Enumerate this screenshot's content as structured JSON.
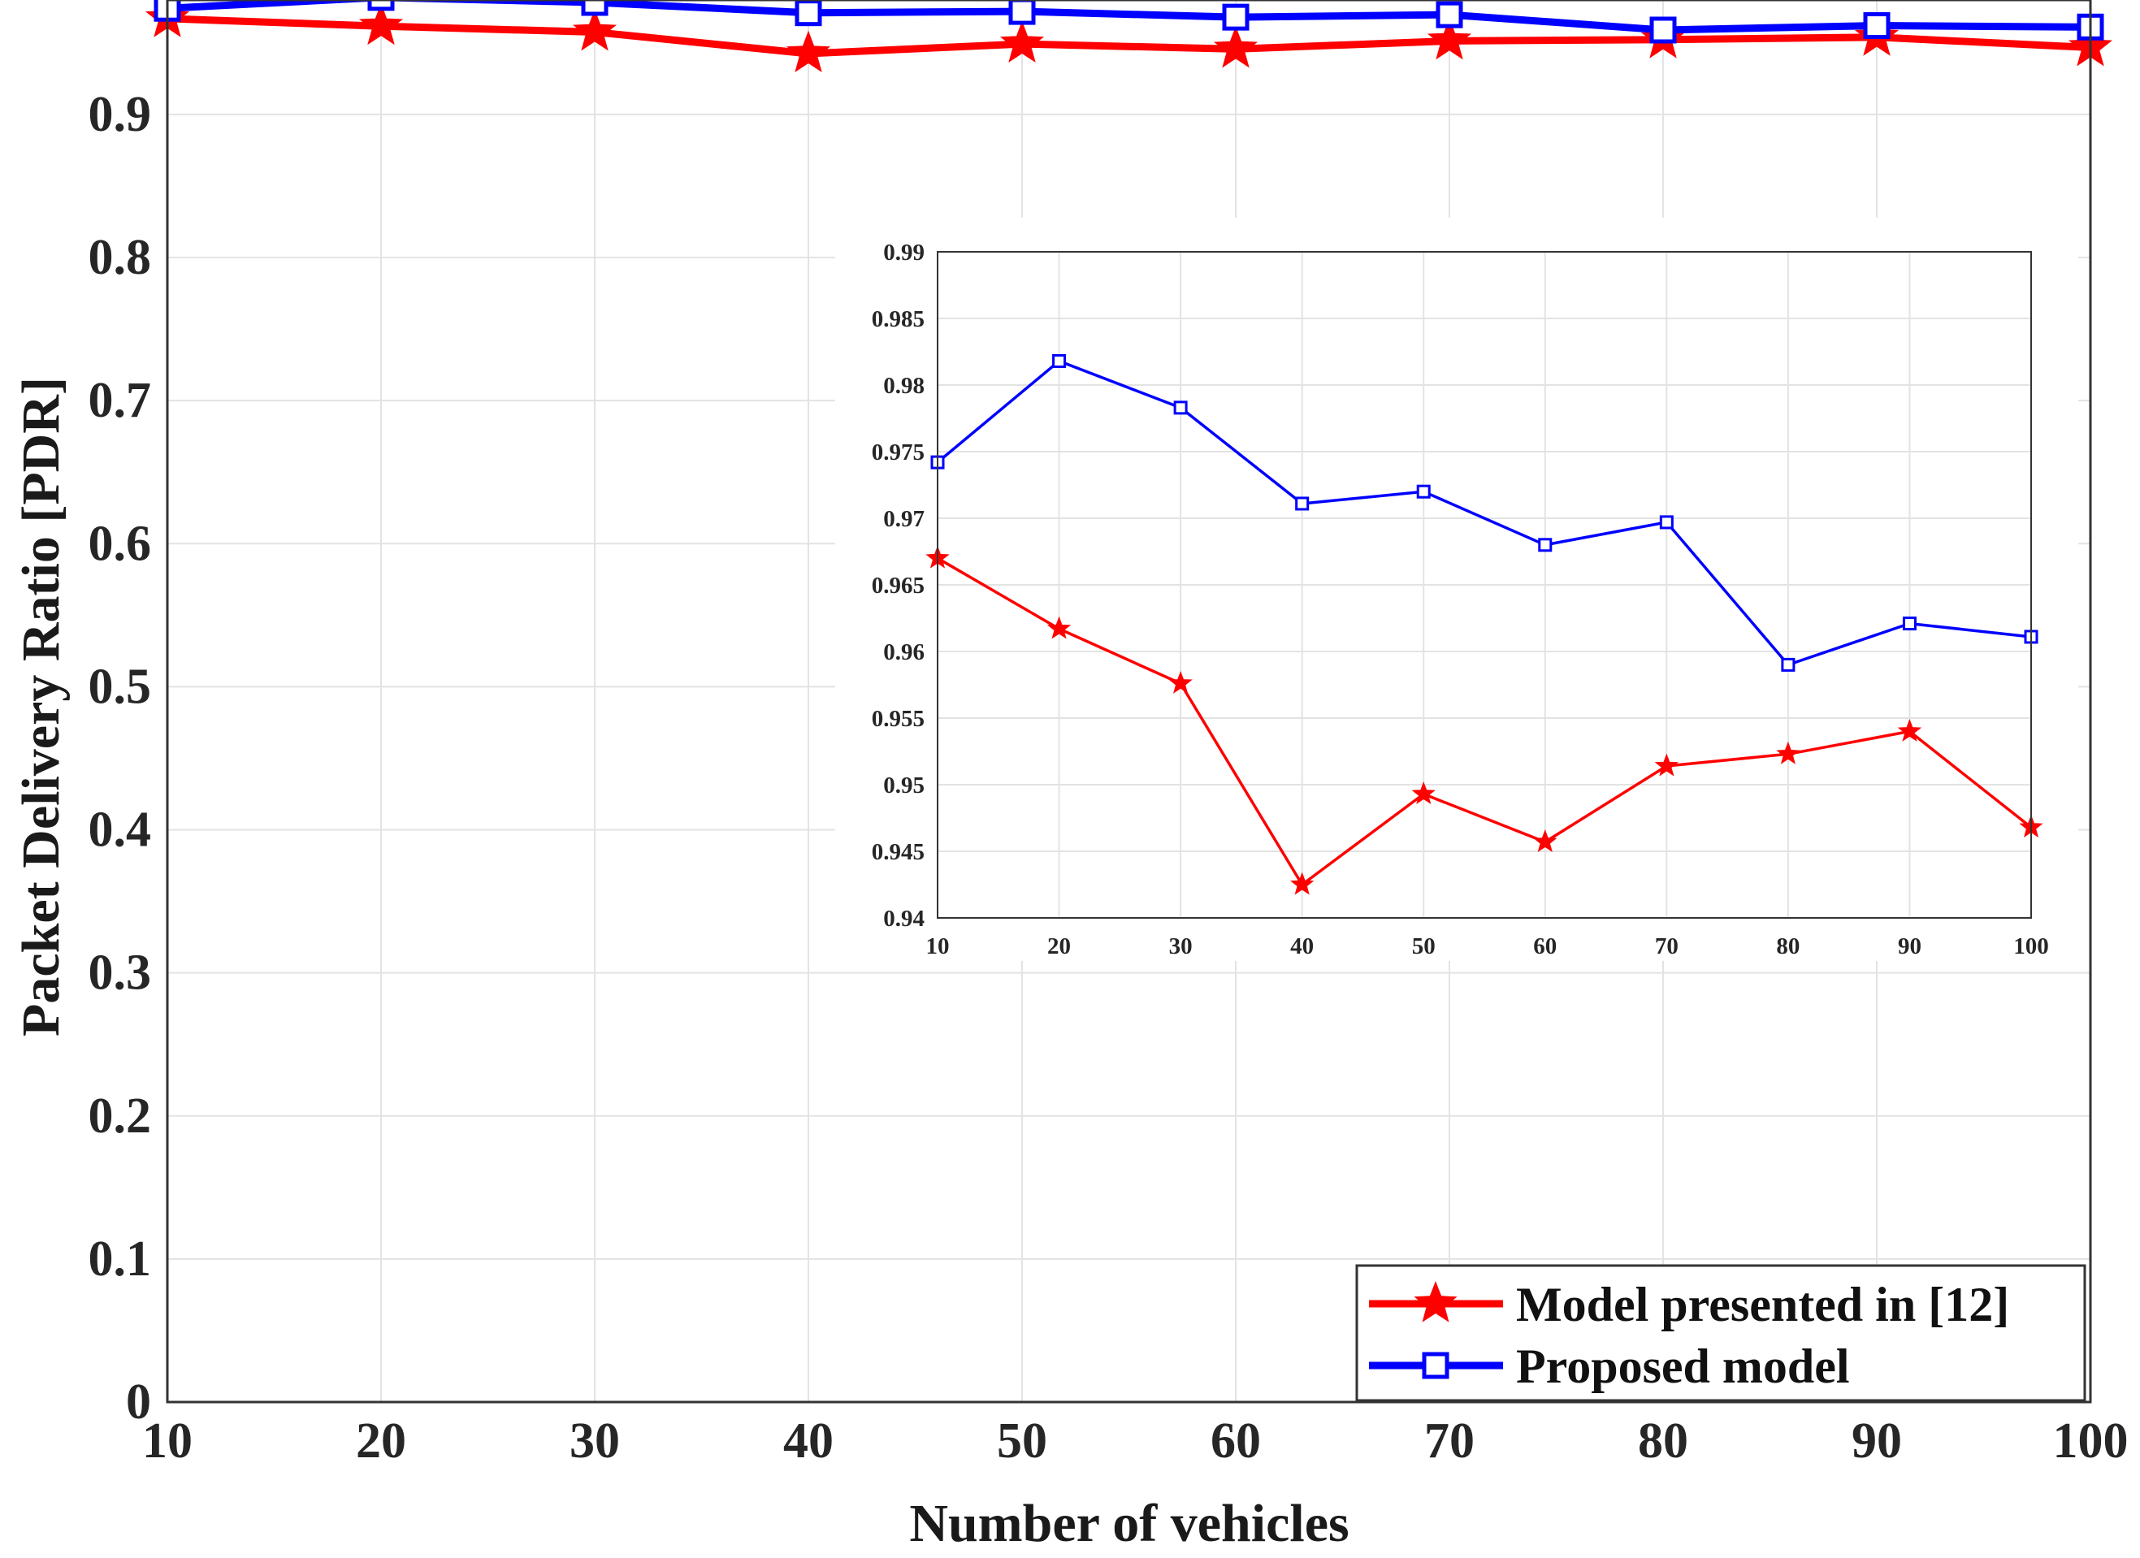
{
  "chart_data": [
    {
      "type": "line",
      "name": "main",
      "title": "",
      "xlabel": "Number of vehicles",
      "ylabel": "Packet Delivery Ratio  [PDR]",
      "x": [
        10,
        20,
        30,
        40,
        50,
        60,
        70,
        80,
        90,
        100
      ],
      "xlim": [
        10,
        100
      ],
      "ylim": [
        0,
        0.98
      ],
      "xticks": [
        "10",
        "20",
        "30",
        "40",
        "50",
        "60",
        "70",
        "80",
        "90",
        "100"
      ],
      "yticks": [
        "0",
        "0.1",
        "0.2",
        "0.3",
        "0.4",
        "0.5",
        "0.6",
        "0.7",
        "0.8",
        "0.9"
      ],
      "grid": true,
      "legend_position": "bottom-right",
      "series": [
        {
          "name": "Model presented in [12]",
          "color": "#ff0000",
          "marker": "star",
          "values": [
            0.967,
            0.9617,
            0.9576,
            0.9425,
            0.9493,
            0.9457,
            0.9514,
            0.9523,
            0.954,
            0.9468
          ]
        },
        {
          "name": "Proposed model",
          "color": "#0000ff",
          "marker": "square",
          "values": [
            0.9742,
            0.9818,
            0.9783,
            0.9711,
            0.972,
            0.968,
            0.9697,
            0.959,
            0.9621,
            0.9611
          ]
        }
      ]
    },
    {
      "type": "line",
      "name": "inset",
      "x": [
        10,
        20,
        30,
        40,
        50,
        60,
        70,
        80,
        90,
        100
      ],
      "xlim": [
        10,
        100
      ],
      "ylim": [
        0.94,
        0.99
      ],
      "xticks": [
        "10",
        "20",
        "30",
        "40",
        "50",
        "60",
        "70",
        "80",
        "90",
        "100"
      ],
      "yticks": [
        "0.94",
        "0.945",
        "0.95",
        "0.955",
        "0.96",
        "0.965",
        "0.97",
        "0.975",
        "0.98",
        "0.985",
        "0.99"
      ],
      "grid": true,
      "series": [
        {
          "name": "Model presented in [12]",
          "color": "#ff0000",
          "marker": "star",
          "values": [
            0.967,
            0.9617,
            0.9576,
            0.9425,
            0.9493,
            0.9457,
            0.9514,
            0.9523,
            0.954,
            0.9468
          ]
        },
        {
          "name": "Proposed model",
          "color": "#0000ff",
          "marker": "square",
          "values": [
            0.9742,
            0.9818,
            0.9783,
            0.9711,
            0.972,
            0.968,
            0.9697,
            0.959,
            0.9621,
            0.9611
          ]
        }
      ]
    }
  ]
}
